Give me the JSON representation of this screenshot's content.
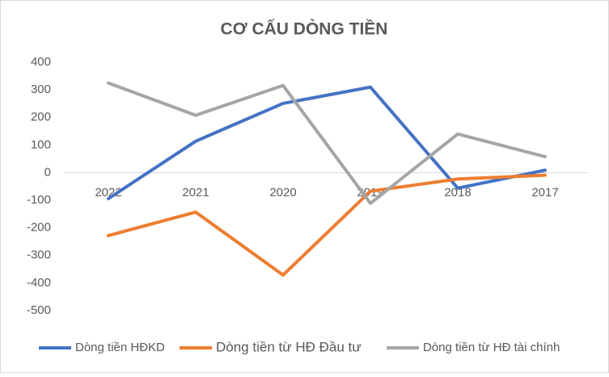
{
  "chart_data": {
    "type": "line",
    "title": "CƠ CẤU DÒNG TIỀN",
    "categories": [
      "2022",
      "2021",
      "2020",
      "2019",
      "2018",
      "2017"
    ],
    "series": [
      {
        "name": "Dòng tiền HĐKD",
        "color": "#4472c4",
        "values": [
          -94,
          114,
          251,
          310,
          -56,
          9
        ]
      },
      {
        "name": "Dòng tiền từ HĐ Đầu tư",
        "color": "#ed7d31",
        "values": [
          -228,
          -143,
          -371,
          -67,
          -23,
          -9
        ]
      },
      {
        "name": "Dòng tiền từ HĐ tài chính",
        "color": "#a5a5a5",
        "values": [
          325,
          208,
          316,
          -111,
          140,
          58
        ]
      }
    ],
    "ylim": [
      -500,
      400
    ],
    "yticks": [
      -500,
      -400,
      -300,
      -200,
      -100,
      0,
      100,
      200,
      300,
      400
    ],
    "grid": false,
    "legend": "bottom"
  }
}
